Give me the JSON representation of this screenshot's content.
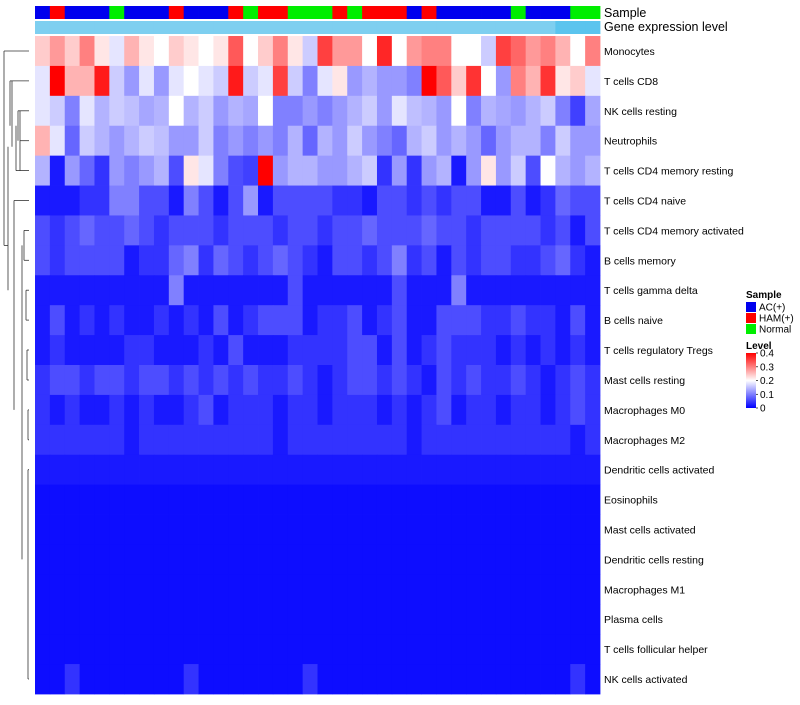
{
  "chart_data": {
    "type": "heatmap",
    "annotation_labels": {
      "sample": "Sample",
      "expression": "Gene expression level"
    },
    "row_labels": [
      "Monocytes",
      "T cells CD8",
      "NK cells resting",
      "Neutrophils",
      "T cells CD4 memory resting",
      "T cells CD4 naive",
      "T cells CD4 memory activated",
      "B cells memory",
      "T cells gamma delta",
      "B cells naive",
      "T cells regulatory  Tregs",
      "Mast cells resting",
      "Macrophages M0",
      "Macrophages M2",
      "Dendritic cells activated",
      "Eosinophils",
      "Mast cells activated",
      "Dendritic cells resting",
      "Macrophages M1",
      "Plasma cells",
      "T cells follicular helper",
      "NK cells activated"
    ],
    "n_columns": 38,
    "sample_groups": [
      "AC(+)",
      "HAM(+)",
      "AC(+)",
      "AC(+)",
      "AC(+)",
      "Normal",
      "AC(+)",
      "AC(+)",
      "AC(+)",
      "HAM(+)",
      "AC(+)",
      "AC(+)",
      "AC(+)",
      "HAM(+)",
      "Normal",
      "HAM(+)",
      "HAM(+)",
      "Normal",
      "Normal",
      "Normal",
      "HAM(+)",
      "Normal",
      "HAM(+)",
      "HAM(+)",
      "HAM(+)",
      "AC(+)",
      "HAM(+)",
      "AC(+)",
      "AC(+)",
      "AC(+)",
      "AC(+)",
      "AC(+)",
      "Normal",
      "AC(+)",
      "AC(+)",
      "AC(+)",
      "Normal",
      "Normal"
    ],
    "expression_level": [
      0.7,
      0.7,
      0.7,
      0.7,
      0.7,
      0.7,
      0.7,
      0.7,
      0.7,
      0.7,
      0.7,
      0.7,
      0.7,
      0.7,
      0.7,
      0.7,
      0.7,
      0.7,
      0.7,
      0.7,
      0.7,
      0.7,
      0.7,
      0.7,
      0.7,
      0.7,
      0.7,
      0.7,
      0.7,
      0.7,
      0.7,
      0.7,
      0.7,
      0.7,
      0.7,
      1.0,
      1.0,
      1.0
    ],
    "values": [
      [
        0.24,
        0.28,
        0.24,
        0.3,
        0.22,
        0.18,
        0.26,
        0.22,
        0.2,
        0.24,
        0.22,
        0.2,
        0.22,
        0.33,
        0.2,
        0.24,
        0.3,
        0.22,
        0.16,
        0.35,
        0.28,
        0.28,
        0.2,
        0.37,
        0.2,
        0.28,
        0.3,
        0.3,
        0.2,
        0.2,
        0.16,
        0.35,
        0.32,
        0.28,
        0.3,
        0.26,
        0.2,
        0.3
      ],
      [
        0.18,
        0.4,
        0.26,
        0.26,
        0.38,
        0.16,
        0.12,
        0.18,
        0.12,
        0.18,
        0.2,
        0.18,
        0.16,
        0.38,
        0.16,
        0.18,
        0.35,
        0.16,
        0.1,
        0.18,
        0.22,
        0.12,
        0.14,
        0.12,
        0.12,
        0.1,
        0.4,
        0.33,
        0.24,
        0.36,
        0.2,
        0.12,
        0.3,
        0.26,
        0.36,
        0.22,
        0.24,
        0.18
      ],
      [
        0.18,
        0.16,
        0.1,
        0.18,
        0.14,
        0.16,
        0.15,
        0.13,
        0.14,
        0.2,
        0.14,
        0.16,
        0.12,
        0.14,
        0.13,
        0.2,
        0.1,
        0.1,
        0.12,
        0.1,
        0.12,
        0.14,
        0.16,
        0.12,
        0.18,
        0.15,
        0.14,
        0.12,
        0.2,
        0.1,
        0.14,
        0.13,
        0.12,
        0.14,
        0.16,
        0.1,
        0.05,
        0.13
      ],
      [
        0.26,
        0.18,
        0.08,
        0.16,
        0.14,
        0.12,
        0.14,
        0.16,
        0.15,
        0.12,
        0.12,
        0.16,
        0.1,
        0.12,
        0.1,
        0.12,
        0.1,
        0.14,
        0.08,
        0.14,
        0.12,
        0.16,
        0.12,
        0.1,
        0.08,
        0.14,
        0.16,
        0.12,
        0.14,
        0.12,
        0.08,
        0.12,
        0.14,
        0.14,
        0.1,
        0.16,
        0.12,
        0.12
      ],
      [
        0.14,
        0.02,
        0.12,
        0.08,
        0.04,
        0.12,
        0.1,
        0.12,
        0.14,
        0.06,
        0.22,
        0.18,
        0.1,
        0.06,
        0.05,
        0.4,
        0.12,
        0.14,
        0.14,
        0.12,
        0.12,
        0.14,
        0.16,
        0.04,
        0.12,
        0.04,
        0.12,
        0.14,
        0.02,
        0.12,
        0.22,
        0.12,
        0.16,
        0.06,
        0.2,
        0.14,
        0.12,
        0.14
      ],
      [
        0.02,
        0.02,
        0.02,
        0.04,
        0.04,
        0.1,
        0.1,
        0.06,
        0.06,
        0.02,
        0.1,
        0.06,
        0.02,
        0.06,
        0.12,
        0.02,
        0.06,
        0.06,
        0.06,
        0.06,
        0.04,
        0.04,
        0.02,
        0.06,
        0.06,
        0.04,
        0.06,
        0.04,
        0.06,
        0.06,
        0.02,
        0.02,
        0.06,
        0.02,
        0.04,
        0.08,
        0.06,
        0.06
      ],
      [
        0.06,
        0.04,
        0.06,
        0.08,
        0.06,
        0.06,
        0.08,
        0.06,
        0.04,
        0.06,
        0.06,
        0.06,
        0.04,
        0.06,
        0.06,
        0.06,
        0.04,
        0.06,
        0.06,
        0.04,
        0.06,
        0.06,
        0.08,
        0.06,
        0.06,
        0.06,
        0.08,
        0.06,
        0.06,
        0.04,
        0.06,
        0.06,
        0.06,
        0.06,
        0.04,
        0.06,
        0.02,
        0.06
      ],
      [
        0.06,
        0.04,
        0.06,
        0.06,
        0.06,
        0.06,
        0.02,
        0.04,
        0.04,
        0.08,
        0.1,
        0.04,
        0.08,
        0.06,
        0.04,
        0.06,
        0.08,
        0.06,
        0.04,
        0.02,
        0.06,
        0.06,
        0.04,
        0.06,
        0.1,
        0.04,
        0.06,
        0.02,
        0.06,
        0.04,
        0.06,
        0.06,
        0.04,
        0.04,
        0.06,
        0.08,
        0.04,
        0.02
      ],
      [
        0.02,
        0.02,
        0.02,
        0.02,
        0.02,
        0.02,
        0.02,
        0.02,
        0.02,
        0.1,
        0.02,
        0.02,
        0.02,
        0.02,
        0.02,
        0.02,
        0.02,
        0.06,
        0.02,
        0.02,
        0.02,
        0.02,
        0.02,
        0.02,
        0.06,
        0.02,
        0.02,
        0.02,
        0.1,
        0.02,
        0.02,
        0.02,
        0.02,
        0.02,
        0.02,
        0.02,
        0.02,
        0.02
      ],
      [
        0.02,
        0.06,
        0.02,
        0.04,
        0.02,
        0.04,
        0.02,
        0.02,
        0.04,
        0.02,
        0.04,
        0.02,
        0.06,
        0.02,
        0.04,
        0.06,
        0.06,
        0.06,
        0.02,
        0.04,
        0.04,
        0.06,
        0.02,
        0.04,
        0.06,
        0.02,
        0.02,
        0.06,
        0.06,
        0.06,
        0.04,
        0.04,
        0.06,
        0.04,
        0.04,
        0.02,
        0.06,
        0.02
      ],
      [
        0.02,
        0.04,
        0.02,
        0.02,
        0.02,
        0.02,
        0.04,
        0.04,
        0.02,
        0.02,
        0.02,
        0.04,
        0.02,
        0.06,
        0.02,
        0.02,
        0.02,
        0.04,
        0.04,
        0.04,
        0.04,
        0.06,
        0.06,
        0.02,
        0.06,
        0.02,
        0.04,
        0.06,
        0.04,
        0.04,
        0.04,
        0.02,
        0.04,
        0.02,
        0.04,
        0.02,
        0.04,
        0.02
      ],
      [
        0.04,
        0.06,
        0.06,
        0.04,
        0.06,
        0.06,
        0.04,
        0.06,
        0.06,
        0.04,
        0.06,
        0.04,
        0.06,
        0.04,
        0.06,
        0.04,
        0.04,
        0.06,
        0.04,
        0.02,
        0.04,
        0.06,
        0.06,
        0.04,
        0.06,
        0.04,
        0.02,
        0.06,
        0.04,
        0.06,
        0.04,
        0.04,
        0.06,
        0.04,
        0.02,
        0.04,
        0.06,
        0.04
      ],
      [
        0.04,
        0.02,
        0.04,
        0.02,
        0.02,
        0.04,
        0.02,
        0.04,
        0.02,
        0.02,
        0.04,
        0.06,
        0.02,
        0.04,
        0.04,
        0.04,
        0.02,
        0.04,
        0.04,
        0.02,
        0.04,
        0.04,
        0.04,
        0.02,
        0.04,
        0.02,
        0.04,
        0.06,
        0.02,
        0.04,
        0.04,
        0.02,
        0.04,
        0.04,
        0.02,
        0.04,
        0.06,
        0.04
      ],
      [
        0.04,
        0.04,
        0.04,
        0.04,
        0.04,
        0.04,
        0.02,
        0.04,
        0.04,
        0.04,
        0.04,
        0.04,
        0.04,
        0.04,
        0.04,
        0.04,
        0.02,
        0.04,
        0.04,
        0.04,
        0.04,
        0.04,
        0.04,
        0.04,
        0.04,
        0.02,
        0.04,
        0.04,
        0.04,
        0.04,
        0.04,
        0.04,
        0.04,
        0.04,
        0.04,
        0.04,
        0.02,
        0.04
      ],
      [
        0.02,
        0.02,
        0.02,
        0.02,
        0.02,
        0.02,
        0.02,
        0.02,
        0.02,
        0.02,
        0.02,
        0.02,
        0.02,
        0.02,
        0.02,
        0.02,
        0.02,
        0.02,
        0.02,
        0.02,
        0.02,
        0.02,
        0.02,
        0.02,
        0.02,
        0.02,
        0.02,
        0.02,
        0.02,
        0.02,
        0.02,
        0.02,
        0.02,
        0.02,
        0.02,
        0.02,
        0.02,
        0.02
      ],
      [
        0.01,
        0.01,
        0.01,
        0.01,
        0.01,
        0.01,
        0.01,
        0.01,
        0.01,
        0.01,
        0.01,
        0.01,
        0.01,
        0.01,
        0.01,
        0.01,
        0.01,
        0.01,
        0.01,
        0.01,
        0.01,
        0.01,
        0.01,
        0.01,
        0.01,
        0.01,
        0.01,
        0.01,
        0.01,
        0.01,
        0.01,
        0.01,
        0.01,
        0.01,
        0.01,
        0.01,
        0.01,
        0.01
      ],
      [
        0.01,
        0.01,
        0.01,
        0.01,
        0.01,
        0.01,
        0.01,
        0.01,
        0.01,
        0.01,
        0.01,
        0.01,
        0.01,
        0.01,
        0.01,
        0.01,
        0.01,
        0.01,
        0.01,
        0.01,
        0.01,
        0.01,
        0.01,
        0.01,
        0.01,
        0.01,
        0.01,
        0.01,
        0.01,
        0.01,
        0.01,
        0.01,
        0.01,
        0.01,
        0.01,
        0.01,
        0.01,
        0.01
      ],
      [
        0.01,
        0.01,
        0.01,
        0.01,
        0.01,
        0.01,
        0.01,
        0.01,
        0.01,
        0.01,
        0.01,
        0.01,
        0.01,
        0.01,
        0.01,
        0.01,
        0.01,
        0.01,
        0.01,
        0.01,
        0.01,
        0.01,
        0.01,
        0.01,
        0.01,
        0.01,
        0.01,
        0.01,
        0.01,
        0.01,
        0.01,
        0.01,
        0.01,
        0.01,
        0.01,
        0.01,
        0.01,
        0.01
      ],
      [
        0.01,
        0.01,
        0.01,
        0.01,
        0.01,
        0.01,
        0.01,
        0.01,
        0.01,
        0.01,
        0.01,
        0.01,
        0.01,
        0.01,
        0.01,
        0.01,
        0.01,
        0.01,
        0.01,
        0.01,
        0.01,
        0.01,
        0.01,
        0.01,
        0.01,
        0.01,
        0.01,
        0.01,
        0.01,
        0.01,
        0.01,
        0.01,
        0.01,
        0.01,
        0.01,
        0.01,
        0.01,
        0.01
      ],
      [
        0.01,
        0.01,
        0.01,
        0.01,
        0.01,
        0.01,
        0.01,
        0.01,
        0.01,
        0.01,
        0.01,
        0.01,
        0.01,
        0.01,
        0.01,
        0.01,
        0.01,
        0.01,
        0.01,
        0.01,
        0.01,
        0.01,
        0.01,
        0.01,
        0.01,
        0.01,
        0.01,
        0.01,
        0.01,
        0.01,
        0.01,
        0.01,
        0.01,
        0.01,
        0.01,
        0.01,
        0.01,
        0.01
      ],
      [
        0.01,
        0.01,
        0.01,
        0.01,
        0.01,
        0.01,
        0.01,
        0.01,
        0.01,
        0.01,
        0.01,
        0.01,
        0.01,
        0.01,
        0.01,
        0.01,
        0.01,
        0.01,
        0.01,
        0.01,
        0.01,
        0.01,
        0.01,
        0.01,
        0.01,
        0.01,
        0.01,
        0.01,
        0.01,
        0.01,
        0.01,
        0.01,
        0.01,
        0.01,
        0.01,
        0.01,
        0.01,
        0.01
      ],
      [
        0.01,
        0.01,
        0.04,
        0.01,
        0.01,
        0.01,
        0.01,
        0.01,
        0.01,
        0.01,
        0.04,
        0.01,
        0.01,
        0.01,
        0.01,
        0.01,
        0.01,
        0.01,
        0.04,
        0.01,
        0.01,
        0.01,
        0.01,
        0.01,
        0.01,
        0.01,
        0.01,
        0.01,
        0.01,
        0.01,
        0.01,
        0.01,
        0.01,
        0.01,
        0.01,
        0.01,
        0.04,
        0.01
      ]
    ],
    "legend_sample": {
      "title": "Sample",
      "entries": [
        {
          "label": "AC(+)",
          "color": "#0000ee"
        },
        {
          "label": "HAM(+)",
          "color": "#ff0000"
        },
        {
          "label": "Normal",
          "color": "#00ee00"
        }
      ]
    },
    "legend_level": {
      "title": "Level",
      "range": [
        0,
        0.4
      ],
      "ticks": [
        {
          "value": 0.4,
          "label": "0.4"
        },
        {
          "value": 0.3,
          "label": "0.3"
        },
        {
          "value": 0.2,
          "label": "0.2"
        },
        {
          "value": 0.1,
          "label": "0.1"
        },
        {
          "value": 0.0,
          "label": "0"
        }
      ],
      "low_color": "#0000ff",
      "mid_color": "#ffffff",
      "high_color": "#ff0000"
    },
    "expression_color_low": "#cfeaf5",
    "expression_color_high": "#5bc4ee"
  }
}
